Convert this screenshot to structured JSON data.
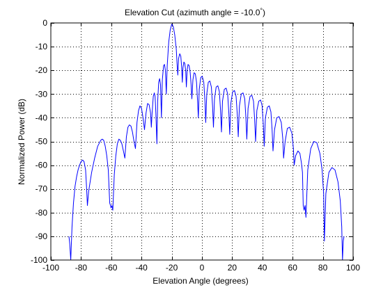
{
  "chart_data": {
    "type": "line",
    "title": "Elevation Cut (azimuth angle = -10.0",
    "title_degree_mark": "°",
    "title_close": ")",
    "xlabel": "Elevation Angle (degrees)",
    "ylabel": "Normalized Power (dB)",
    "xlim": [
      -100,
      100
    ],
    "ylim": [
      -100,
      0
    ],
    "x_ticks": [
      -100,
      -80,
      -60,
      -40,
      -20,
      0,
      20,
      40,
      60,
      80,
      100
    ],
    "y_ticks": [
      0,
      -10,
      -20,
      -30,
      -40,
      -50,
      -60,
      -70,
      -80,
      -90,
      -100
    ],
    "grid": true,
    "legend": "none",
    "series": [
      {
        "color": "#0000ff",
        "lobes": [
          {
            "x": [
              -88.0,
              -87.5,
              -86.8,
              -86.0,
              -85.0,
              -84.0,
              -83.0,
              -82.0,
              -81.0,
              -80.0,
              -79.0,
              -78.0,
              -77.0,
              -76.3,
              -75.8
            ],
            "y": [
              -90.0,
              -93.0,
              -100.0,
              -86.0,
              -76.0,
              -69.0,
              -65.0,
              -62.0,
              -60.0,
              -58.5,
              -57.8,
              -58.5,
              -62.0,
              -70.0,
              -77.0
            ]
          },
          {
            "x": [
              -75.8,
              -75.0,
              -73.0,
              -71.0,
              -69.0,
              -67.0,
              -66.0,
              -65.0,
              -64.0,
              -63.0,
              -62.0,
              -61.5,
              -61.0
            ],
            "y": [
              -77.0,
              -71.0,
              -63.0,
              -57.0,
              -52.0,
              -49.5,
              -49.0,
              -49.5,
              -52.0,
              -56.0,
              -62.0,
              -69.0,
              -76.0
            ]
          },
          {
            "x": [
              -61.0,
              -60.5,
              -60.2,
              -59.6,
              -59.0
            ],
            "y": [
              -76.0,
              -77.0,
              -78.0,
              -77.0,
              -79.0
            ]
          },
          {
            "x": [
              -59.0,
              -58.0,
              -57.0,
              -56.0,
              -55.0,
              -54.0,
              -53.0,
              -52.0,
              -51.0
            ],
            "y": [
              -79.0,
              -64.0,
              -56.0,
              -51.0,
              -49.0,
              -49.5,
              -51.0,
              -54.0,
              -57.0
            ]
          },
          {
            "x": [
              -51.0,
              -50.0,
              -49.0,
              -48.0,
              -47.0,
              -46.0,
              -45.0,
              -44.0
            ],
            "y": [
              -57.0,
              -48.0,
              -44.0,
              -43.0,
              -43.5,
              -46.0,
              -50.0,
              -53.0
            ]
          },
          {
            "x": [
              -44.0,
              -43.0,
              -42.0,
              -41.0,
              -40.0,
              -39.0,
              -38.0
            ],
            "y": [
              -53.0,
              -42.0,
              -37.0,
              -35.0,
              -36.0,
              -40.0,
              -45.0
            ]
          },
          {
            "x": [
              -38.0,
              -37.0,
              -36.0,
              -35.0,
              -34.0,
              -33.5
            ],
            "y": [
              -45.0,
              -38.0,
              -34.0,
              -34.5,
              -38.0,
              -44.0
            ]
          },
          {
            "x": [
              -33.5,
              -33.0,
              -32.2,
              -31.5,
              -31.0,
              -30.5,
              -29.8
            ],
            "y": [
              -44.0,
              -38.0,
              -31.0,
              -29.5,
              -31.0,
              -38.0,
              -51.0
            ]
          },
          {
            "x": [
              -29.8,
              -29.3,
              -28.6,
              -28.0,
              -27.4,
              -26.8
            ],
            "y": [
              -51.0,
              -33.0,
              -25.0,
              -23.5,
              -26.0,
              -40.0
            ]
          },
          {
            "x": [
              -26.8,
              -26.2,
              -25.4,
              -24.8,
              -24.2,
              -23.6
            ],
            "y": [
              -40.0,
              -24.0,
              -18.0,
              -17.5,
              -20.0,
              -30.0
            ]
          },
          {
            "x": [
              -23.6,
              -23.0,
              -22.0,
              -21.0,
              -20.0,
              -19.0,
              -18.0,
              -17.0,
              -16.5,
              -16.0
            ],
            "y": [
              -30.0,
              -18.0,
              -8.0,
              -3.0,
              -0.5,
              -1.5,
              -5.0,
              -11.0,
              -17.0,
              -22.0
            ]
          },
          {
            "x": [
              -16.0,
              -15.5,
              -14.7,
              -14.0,
              -13.5,
              -13.0
            ],
            "y": [
              -22.0,
              -15.0,
              -13.0,
              -14.0,
              -18.0,
              -25.0
            ]
          },
          {
            "x": [
              -13.0,
              -12.6,
              -12.0,
              -11.4,
              -10.8,
              -10.3
            ],
            "y": [
              -25.0,
              -19.0,
              -16.5,
              -17.0,
              -20.0,
              -27.0
            ]
          },
          {
            "x": [
              -10.3,
              -9.8,
              -9.2,
              -8.5,
              -7.8,
              -7.2,
              -6.7
            ],
            "y": [
              -27.0,
              -20.0,
              -17.5,
              -18.0,
              -21.0,
              -26.0,
              -32.0
            ]
          },
          {
            "x": [
              -6.7,
              -6.0,
              -5.2,
              -4.4,
              -3.6,
              -2.9,
              -2.4
            ],
            "y": [
              -32.0,
              -24.0,
              -21.0,
              -21.5,
              -25.0,
              -33.0,
              -40.0
            ]
          },
          {
            "x": [
              -2.4,
              -1.8,
              -0.8,
              0.2,
              1.2,
              2.0,
              2.5
            ],
            "y": [
              -40.0,
              -28.0,
              -23.0,
              -22.5,
              -25.0,
              -33.0,
              -42.0
            ]
          },
          {
            "x": [
              2.5,
              3.2,
              4.2,
              5.2,
              6.2,
              7.0,
              7.6
            ],
            "y": [
              -42.0,
              -30.0,
              -25.0,
              -24.5,
              -27.0,
              -35.0,
              -44.0
            ]
          },
          {
            "x": [
              7.6,
              8.3,
              9.4,
              10.5,
              11.5,
              12.3,
              12.9
            ],
            "y": [
              -44.0,
              -32.0,
              -27.0,
              -26.5,
              -29.0,
              -37.0,
              -46.0
            ]
          },
          {
            "x": [
              12.9,
              13.6,
              14.8,
              16.0,
              17.0,
              17.8,
              18.4
            ],
            "y": [
              -46.0,
              -33.0,
              -28.0,
              -27.5,
              -30.0,
              -38.0,
              -47.0
            ]
          },
          {
            "x": [
              18.4,
              19.1,
              20.3,
              21.5,
              22.6,
              23.4,
              24.0
            ],
            "y": [
              -47.0,
              -34.0,
              -29.0,
              -28.5,
              -31.0,
              -39.0,
              -48.0
            ]
          },
          {
            "x": [
              24.0,
              24.8,
              26.0,
              27.2,
              28.3,
              29.1,
              29.7
            ],
            "y": [
              -48.0,
              -35.0,
              -30.0,
              -29.5,
              -32.0,
              -40.0,
              -49.0
            ]
          },
          {
            "x": [
              29.7,
              30.5,
              31.8,
              33.0,
              34.1,
              34.9,
              35.5
            ],
            "y": [
              -49.0,
              -36.0,
              -31.0,
              -30.5,
              -33.0,
              -41.0,
              -50.0
            ]
          },
          {
            "x": [
              35.5,
              36.3,
              37.6,
              38.8,
              39.8,
              40.6,
              41.2
            ],
            "y": [
              -50.0,
              -37.0,
              -33.0,
              -32.5,
              -35.0,
              -43.0,
              -52.0
            ]
          },
          {
            "x": [
              41.2,
              42.0,
              43.3,
              44.5,
              45.6,
              46.4,
              47.0
            ],
            "y": [
              -52.0,
              -40.0,
              -35.5,
              -35.0,
              -37.5,
              -45.0,
              -54.0
            ]
          },
          {
            "x": [
              47.0,
              48.0,
              49.5,
              51.0,
              52.5,
              53.5,
              54.0
            ],
            "y": [
              -54.0,
              -45.0,
              -40.0,
              -39.5,
              -42.0,
              -49.0,
              -57.0
            ]
          },
          {
            "x": [
              54.0,
              55.0,
              56.5,
              58.0,
              59.5,
              60.5,
              61.0
            ],
            "y": [
              -57.0,
              -50.0,
              -44.5,
              -44.0,
              -46.5,
              -53.0,
              -60.0
            ]
          },
          {
            "x": [
              61.0,
              62.0,
              63.5,
              64.8,
              65.8,
              66.5
            ],
            "y": [
              -60.0,
              -56.0,
              -54.0,
              -55.0,
              -59.0,
              -63.0
            ]
          },
          {
            "x": [
              66.5,
              67.0,
              67.6,
              68.2,
              68.8
            ],
            "y": [
              -63.0,
              -77.0,
              -79.0,
              -77.0,
              -82.0
            ]
          },
          {
            "x": [
              68.8,
              70.0,
              72.0,
              74.0,
              76.0,
              78.0,
              79.5,
              80.5,
              81.0
            ],
            "y": [
              -82.0,
              -62.0,
              -53.0,
              -50.0,
              -50.5,
              -55.0,
              -62.0,
              -72.0,
              -92.0
            ]
          },
          {
            "x": [
              81.0,
              82.0,
              84.0,
              86.0,
              88.0,
              90.0,
              91.5,
              92.5,
              93.0
            ],
            "y": [
              -92.0,
              -72.0,
              -63.0,
              -61.0,
              -62.0,
              -67.0,
              -75.0,
              -86.0,
              -100.0
            ]
          },
          {
            "x": [
              93.0,
              93.5,
              94.0
            ],
            "y": [
              -100.0,
              -92.0,
              -90.0
            ]
          }
        ]
      }
    ]
  }
}
